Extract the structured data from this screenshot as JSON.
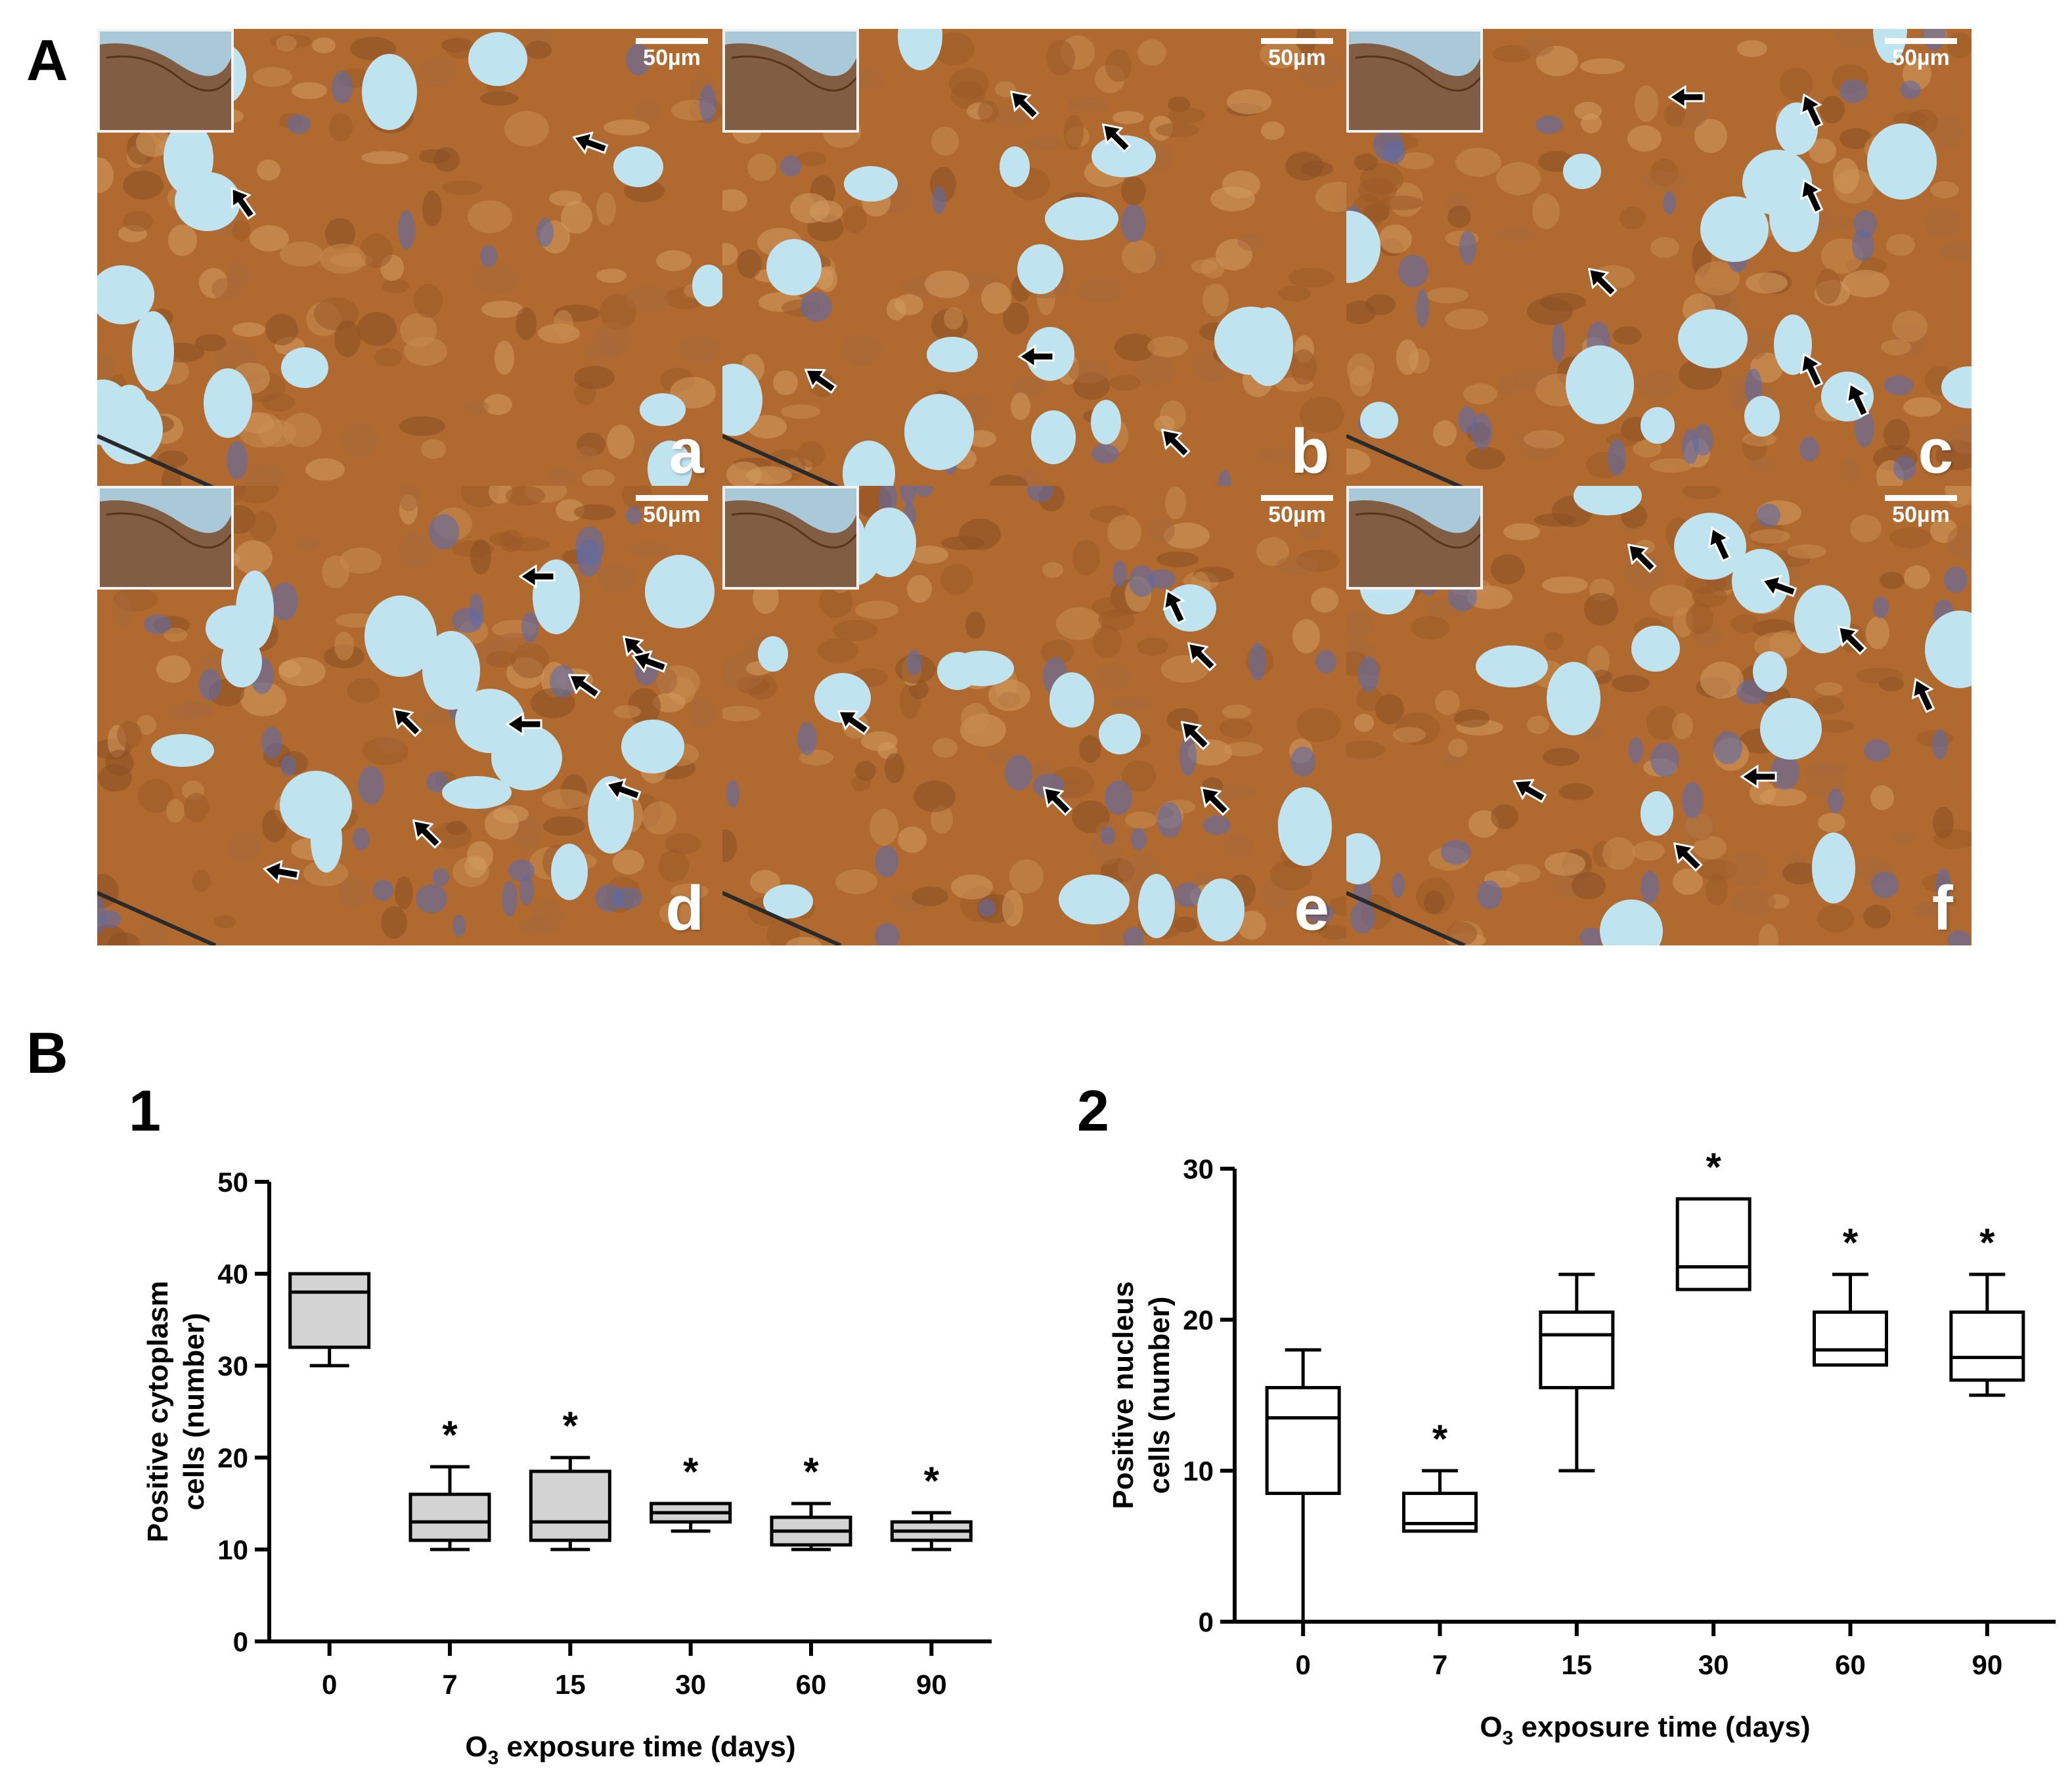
{
  "figure": {
    "panel_a_letter": "A",
    "panel_b_letter": "B",
    "subpanel_1": "1",
    "subpanel_2": "2"
  },
  "micrographs": [
    {
      "label": "a",
      "scale": "50µm",
      "arrow_count": 2
    },
    {
      "label": "b",
      "scale": "50µm",
      "arrow_count": 5
    },
    {
      "label": "c",
      "scale": "50µm",
      "arrow_count": 6
    },
    {
      "label": "d",
      "scale": "50µm",
      "arrow_count": 9
    },
    {
      "label": "e",
      "scale": "50µm",
      "arrow_count": 6
    },
    {
      "label": "f",
      "scale": "50µm",
      "arrow_count": 8
    }
  ],
  "colors": {
    "stain_brown": "#b06a30",
    "lumen_blue": "#bfe3ef",
    "nucleus_blue": "#5d6aa8",
    "box_fill_chart1": "#d3d3d3",
    "box_fill_chart2": "#ffffff"
  },
  "chart_data": [
    {
      "type": "box",
      "categories": [
        "0",
        "7",
        "15",
        "30",
        "60",
        "90"
      ],
      "ylabel_line1": "Positive cytoplasm",
      "ylabel_line2": "cells (number)",
      "xlabel_prefix": "O",
      "xlabel_sub": "3",
      "xlabel_rest": " exposure time (days)",
      "ylim": [
        0,
        50
      ],
      "yticks": [
        "0",
        "10",
        "20",
        "30",
        "40",
        "50"
      ],
      "ytick_values": [
        0,
        10,
        20,
        30,
        40,
        50
      ],
      "boxes": [
        {
          "min": 30,
          "q1": 32,
          "median": 38,
          "q3": 40,
          "max": 40,
          "sig": ""
        },
        {
          "min": 10,
          "q1": 11,
          "median": 13,
          "q3": 16,
          "max": 19,
          "sig": "*"
        },
        {
          "min": 10,
          "q1": 11,
          "median": 13,
          "q3": 18.5,
          "max": 20,
          "sig": "*"
        },
        {
          "min": 12,
          "q1": 13,
          "median": 14,
          "q3": 15,
          "max": 15,
          "sig": "*"
        },
        {
          "min": 10,
          "q1": 10.5,
          "median": 12,
          "q3": 13.5,
          "max": 15,
          "sig": "*"
        },
        {
          "min": 10,
          "q1": 11,
          "median": 12,
          "q3": 13,
          "max": 14,
          "sig": "*"
        }
      ]
    },
    {
      "type": "box",
      "categories": [
        "0",
        "7",
        "15",
        "30",
        "60",
        "90"
      ],
      "ylabel_line1": "Positive nucleus",
      "ylabel_line2": "cells (number)",
      "xlabel_prefix": "O",
      "xlabel_sub": "3",
      "xlabel_rest": " exposure time (days)",
      "ylim": [
        0,
        30
      ],
      "yticks": [
        "0",
        "10",
        "20",
        "30"
      ],
      "ytick_values": [
        0,
        10,
        20,
        30
      ],
      "boxes": [
        {
          "min": 0,
          "q1": 8.5,
          "median": 13.5,
          "q3": 15.5,
          "max": 18,
          "sig": ""
        },
        {
          "min": 6,
          "q1": 6,
          "median": 6.5,
          "q3": 8.5,
          "max": 10,
          "sig": "*"
        },
        {
          "min": 10,
          "q1": 15.5,
          "median": 19,
          "q3": 20.5,
          "max": 23,
          "sig": ""
        },
        {
          "min": 22,
          "q1": 22,
          "median": 23.5,
          "q3": 28,
          "max": 28,
          "sig": "*"
        },
        {
          "min": 17,
          "q1": 17,
          "median": 18,
          "q3": 20.5,
          "max": 23,
          "sig": "*"
        },
        {
          "min": 15,
          "q1": 16,
          "median": 17.5,
          "q3": 20.5,
          "max": 23,
          "sig": "*"
        }
      ]
    }
  ]
}
